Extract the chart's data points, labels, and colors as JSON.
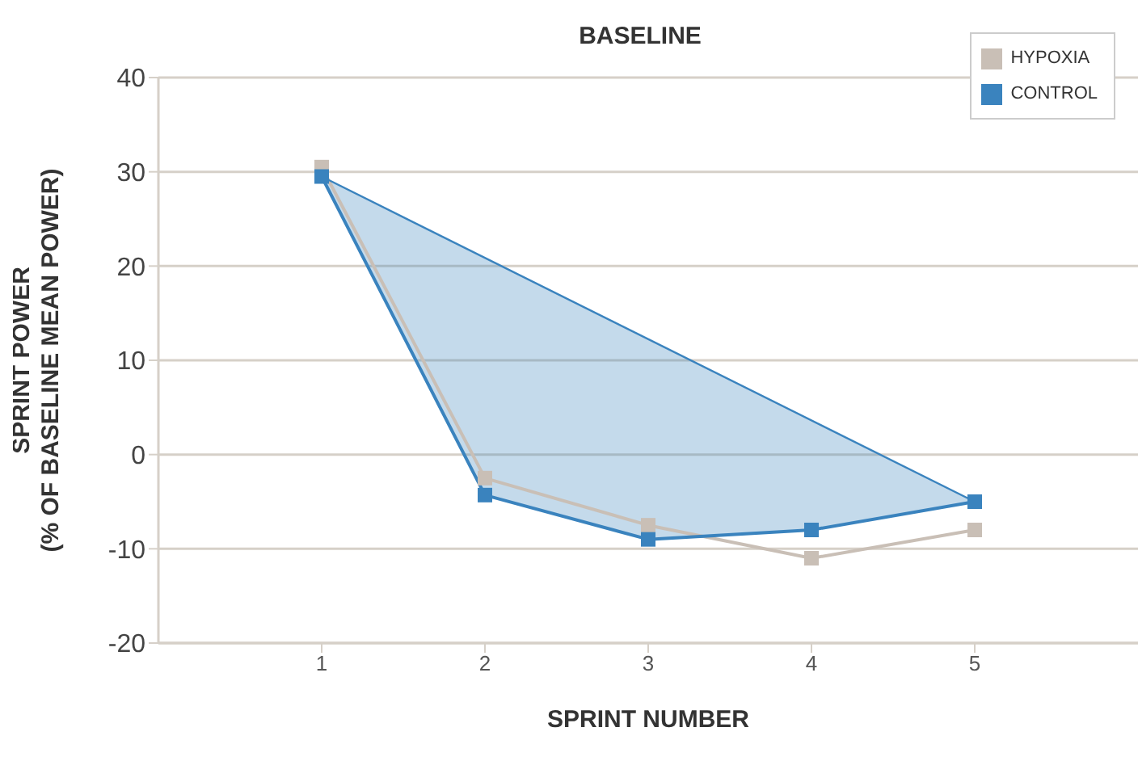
{
  "chart_data": {
    "type": "line",
    "title": "BASELINE",
    "xlabel": "SPRINT NUMBER",
    "ylabel": "SPRINT POWER\n(% OF BASELINE MEAN POWER)",
    "x": [
      1,
      2,
      3,
      4,
      5
    ],
    "xlim": [
      0,
      6
    ],
    "xticks": [
      1,
      2,
      3,
      4,
      5
    ],
    "ylim": [
      -20,
      40
    ],
    "yticks": [
      -20,
      -10,
      0,
      10,
      20,
      30,
      40
    ],
    "series": [
      {
        "name": "HYPOXIA",
        "color": "#c9bfb6",
        "values": [
          30.5,
          -2.5,
          -7.5,
          -11,
          -8
        ]
      },
      {
        "name": "CONTROL",
        "color": "#3a83be",
        "values": [
          29.5,
          -4.3,
          -9,
          -8,
          -5
        ],
        "lower": [
          29.5,
          -4.3,
          -9,
          -8,
          -5
        ],
        "upper": [
          29.5,
          20.9,
          12.3,
          3.6,
          -5
        ]
      },
      {
        "type": "line",
        "color": "#3a83be",
        "x": [
          1,
          5
        ],
        "values": [
          29.5,
          -5
        ],
        "marker": "none"
      }
    ],
    "grid": "y",
    "legend": "top right",
    "marker": "square",
    "line_style": "solid"
  }
}
